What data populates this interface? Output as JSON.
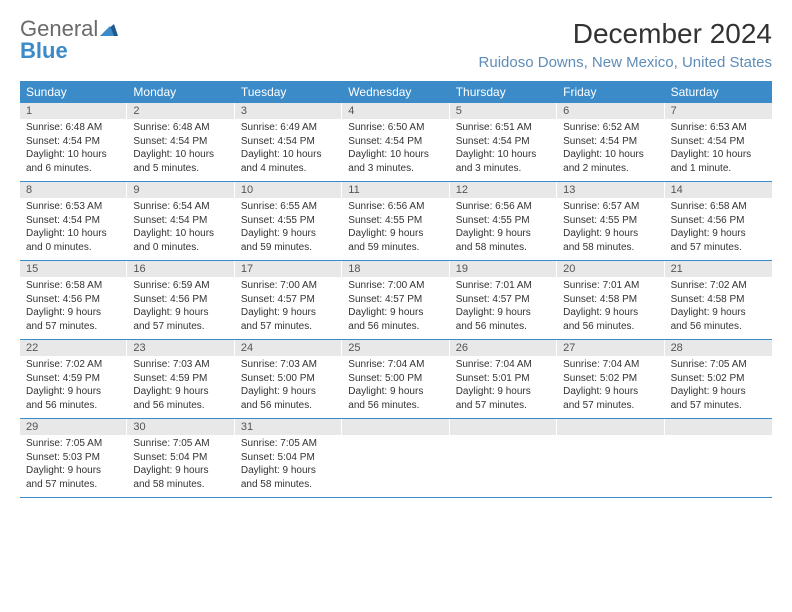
{
  "logo": {
    "general": "General",
    "blue": "Blue"
  },
  "title": "December 2024",
  "location": "Ruidoso Downs, New Mexico, United States",
  "day_header_bg": "#3b8bc9",
  "day_header_color": "#ffffff",
  "daynum_bg": "#e8e8e8",
  "border_color": "#3b8bc9",
  "location_color": "#5e8db7",
  "days_of_week": [
    "Sunday",
    "Monday",
    "Tuesday",
    "Wednesday",
    "Thursday",
    "Friday",
    "Saturday"
  ],
  "weeks": [
    [
      {
        "num": "1",
        "sunrise": "Sunrise: 6:48 AM",
        "sunset": "Sunset: 4:54 PM",
        "daylight1": "Daylight: 10 hours",
        "daylight2": "and 6 minutes."
      },
      {
        "num": "2",
        "sunrise": "Sunrise: 6:48 AM",
        "sunset": "Sunset: 4:54 PM",
        "daylight1": "Daylight: 10 hours",
        "daylight2": "and 5 minutes."
      },
      {
        "num": "3",
        "sunrise": "Sunrise: 6:49 AM",
        "sunset": "Sunset: 4:54 PM",
        "daylight1": "Daylight: 10 hours",
        "daylight2": "and 4 minutes."
      },
      {
        "num": "4",
        "sunrise": "Sunrise: 6:50 AM",
        "sunset": "Sunset: 4:54 PM",
        "daylight1": "Daylight: 10 hours",
        "daylight2": "and 3 minutes."
      },
      {
        "num": "5",
        "sunrise": "Sunrise: 6:51 AM",
        "sunset": "Sunset: 4:54 PM",
        "daylight1": "Daylight: 10 hours",
        "daylight2": "and 3 minutes."
      },
      {
        "num": "6",
        "sunrise": "Sunrise: 6:52 AM",
        "sunset": "Sunset: 4:54 PM",
        "daylight1": "Daylight: 10 hours",
        "daylight2": "and 2 minutes."
      },
      {
        "num": "7",
        "sunrise": "Sunrise: 6:53 AM",
        "sunset": "Sunset: 4:54 PM",
        "daylight1": "Daylight: 10 hours",
        "daylight2": "and 1 minute."
      }
    ],
    [
      {
        "num": "8",
        "sunrise": "Sunrise: 6:53 AM",
        "sunset": "Sunset: 4:54 PM",
        "daylight1": "Daylight: 10 hours",
        "daylight2": "and 0 minutes."
      },
      {
        "num": "9",
        "sunrise": "Sunrise: 6:54 AM",
        "sunset": "Sunset: 4:54 PM",
        "daylight1": "Daylight: 10 hours",
        "daylight2": "and 0 minutes."
      },
      {
        "num": "10",
        "sunrise": "Sunrise: 6:55 AM",
        "sunset": "Sunset: 4:55 PM",
        "daylight1": "Daylight: 9 hours",
        "daylight2": "and 59 minutes."
      },
      {
        "num": "11",
        "sunrise": "Sunrise: 6:56 AM",
        "sunset": "Sunset: 4:55 PM",
        "daylight1": "Daylight: 9 hours",
        "daylight2": "and 59 minutes."
      },
      {
        "num": "12",
        "sunrise": "Sunrise: 6:56 AM",
        "sunset": "Sunset: 4:55 PM",
        "daylight1": "Daylight: 9 hours",
        "daylight2": "and 58 minutes."
      },
      {
        "num": "13",
        "sunrise": "Sunrise: 6:57 AM",
        "sunset": "Sunset: 4:55 PM",
        "daylight1": "Daylight: 9 hours",
        "daylight2": "and 58 minutes."
      },
      {
        "num": "14",
        "sunrise": "Sunrise: 6:58 AM",
        "sunset": "Sunset: 4:56 PM",
        "daylight1": "Daylight: 9 hours",
        "daylight2": "and 57 minutes."
      }
    ],
    [
      {
        "num": "15",
        "sunrise": "Sunrise: 6:58 AM",
        "sunset": "Sunset: 4:56 PM",
        "daylight1": "Daylight: 9 hours",
        "daylight2": "and 57 minutes."
      },
      {
        "num": "16",
        "sunrise": "Sunrise: 6:59 AM",
        "sunset": "Sunset: 4:56 PM",
        "daylight1": "Daylight: 9 hours",
        "daylight2": "and 57 minutes."
      },
      {
        "num": "17",
        "sunrise": "Sunrise: 7:00 AM",
        "sunset": "Sunset: 4:57 PM",
        "daylight1": "Daylight: 9 hours",
        "daylight2": "and 57 minutes."
      },
      {
        "num": "18",
        "sunrise": "Sunrise: 7:00 AM",
        "sunset": "Sunset: 4:57 PM",
        "daylight1": "Daylight: 9 hours",
        "daylight2": "and 56 minutes."
      },
      {
        "num": "19",
        "sunrise": "Sunrise: 7:01 AM",
        "sunset": "Sunset: 4:57 PM",
        "daylight1": "Daylight: 9 hours",
        "daylight2": "and 56 minutes."
      },
      {
        "num": "20",
        "sunrise": "Sunrise: 7:01 AM",
        "sunset": "Sunset: 4:58 PM",
        "daylight1": "Daylight: 9 hours",
        "daylight2": "and 56 minutes."
      },
      {
        "num": "21",
        "sunrise": "Sunrise: 7:02 AM",
        "sunset": "Sunset: 4:58 PM",
        "daylight1": "Daylight: 9 hours",
        "daylight2": "and 56 minutes."
      }
    ],
    [
      {
        "num": "22",
        "sunrise": "Sunrise: 7:02 AM",
        "sunset": "Sunset: 4:59 PM",
        "daylight1": "Daylight: 9 hours",
        "daylight2": "and 56 minutes."
      },
      {
        "num": "23",
        "sunrise": "Sunrise: 7:03 AM",
        "sunset": "Sunset: 4:59 PM",
        "daylight1": "Daylight: 9 hours",
        "daylight2": "and 56 minutes."
      },
      {
        "num": "24",
        "sunrise": "Sunrise: 7:03 AM",
        "sunset": "Sunset: 5:00 PM",
        "daylight1": "Daylight: 9 hours",
        "daylight2": "and 56 minutes."
      },
      {
        "num": "25",
        "sunrise": "Sunrise: 7:04 AM",
        "sunset": "Sunset: 5:00 PM",
        "daylight1": "Daylight: 9 hours",
        "daylight2": "and 56 minutes."
      },
      {
        "num": "26",
        "sunrise": "Sunrise: 7:04 AM",
        "sunset": "Sunset: 5:01 PM",
        "daylight1": "Daylight: 9 hours",
        "daylight2": "and 57 minutes."
      },
      {
        "num": "27",
        "sunrise": "Sunrise: 7:04 AM",
        "sunset": "Sunset: 5:02 PM",
        "daylight1": "Daylight: 9 hours",
        "daylight2": "and 57 minutes."
      },
      {
        "num": "28",
        "sunrise": "Sunrise: 7:05 AM",
        "sunset": "Sunset: 5:02 PM",
        "daylight1": "Daylight: 9 hours",
        "daylight2": "and 57 minutes."
      }
    ],
    [
      {
        "num": "29",
        "sunrise": "Sunrise: 7:05 AM",
        "sunset": "Sunset: 5:03 PM",
        "daylight1": "Daylight: 9 hours",
        "daylight2": "and 57 minutes."
      },
      {
        "num": "30",
        "sunrise": "Sunrise: 7:05 AM",
        "sunset": "Sunset: 5:04 PM",
        "daylight1": "Daylight: 9 hours",
        "daylight2": "and 58 minutes."
      },
      {
        "num": "31",
        "sunrise": "Sunrise: 7:05 AM",
        "sunset": "Sunset: 5:04 PM",
        "daylight1": "Daylight: 9 hours",
        "daylight2": "and 58 minutes."
      },
      {
        "empty": true
      },
      {
        "empty": true
      },
      {
        "empty": true
      },
      {
        "empty": true
      }
    ]
  ]
}
